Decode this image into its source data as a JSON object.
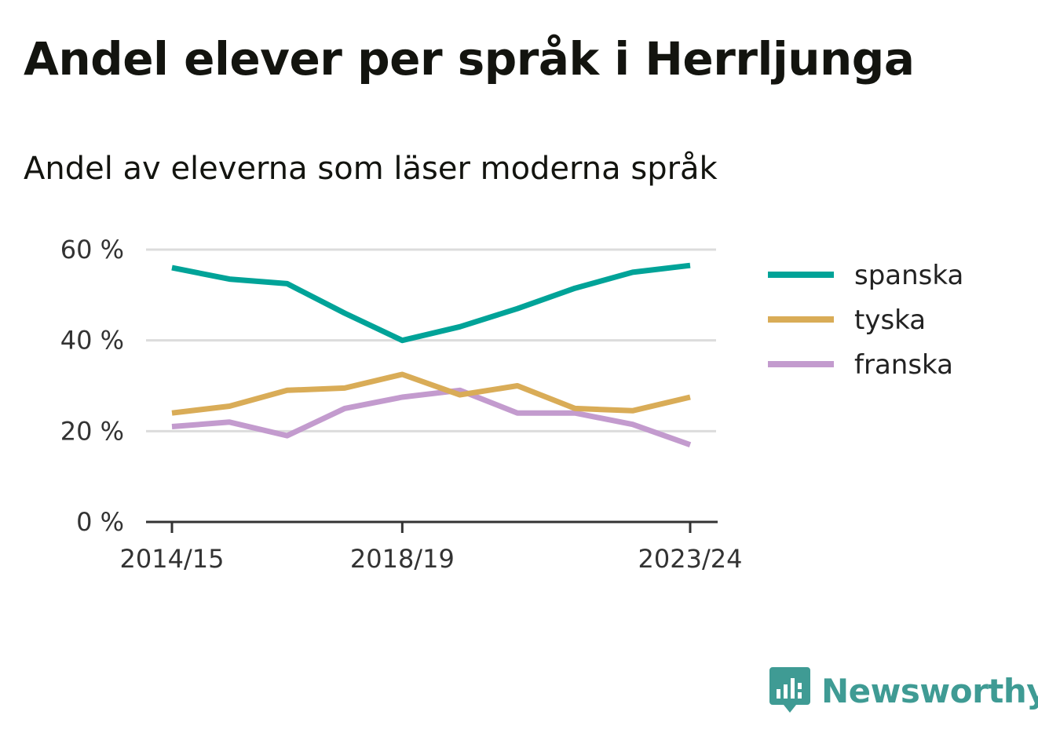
{
  "title": "Andel elever per språk i Herrljunga",
  "subtitle": "Andel av eleverna som läser moderna språk",
  "brand": {
    "name": "Newsworthy",
    "icon": "newsworthy-logo-icon",
    "color": "#3f9b94"
  },
  "chart_data": {
    "type": "line",
    "title": "Andel elever per språk i Herrljunga",
    "subtitle": "Andel av eleverna som läser moderna språk",
    "x": [
      "2014/15",
      "2015/16",
      "2016/17",
      "2017/18",
      "2018/19",
      "2019/20",
      "2020/21",
      "2021/22",
      "2022/23",
      "2023/24"
    ],
    "x_tick_labels": [
      "2014/15",
      "2018/19",
      "2023/24"
    ],
    "y_tick_labels": [
      "0 %",
      "20 %",
      "40 %",
      "60 %"
    ],
    "y_ticks": [
      0,
      20,
      40,
      60
    ],
    "ylim": [
      0,
      60
    ],
    "grid": true,
    "legend_position": "right",
    "series": [
      {
        "name": "spanska",
        "color": "#00a398",
        "values": [
          56,
          53.5,
          52.5,
          46,
          40,
          43,
          47,
          51.5,
          55,
          56.5
        ]
      },
      {
        "name": "tyska",
        "color": "#d9ac57",
        "values": [
          24,
          25.5,
          29,
          29.5,
          32.5,
          28,
          30,
          25,
          24.5,
          27.5
        ]
      },
      {
        "name": "franska",
        "color": "#c39bce",
        "values": [
          21,
          22,
          19,
          25,
          27.5,
          29,
          24,
          24,
          21.5,
          17
        ]
      }
    ]
  }
}
